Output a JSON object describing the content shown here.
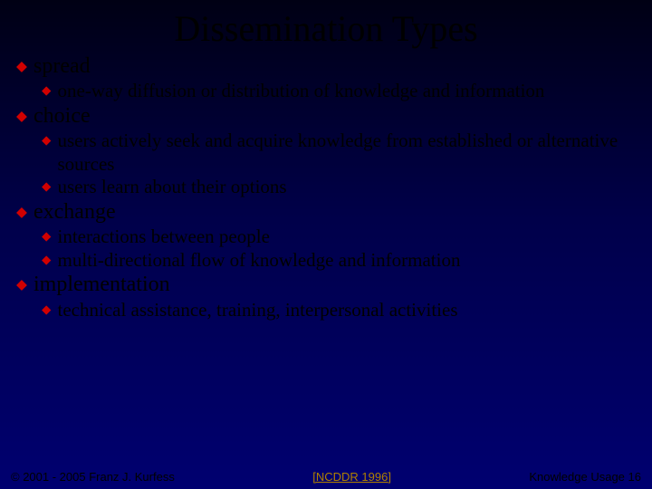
{
  "colors": {
    "background_top": "#000014",
    "background_mid": "#00004a",
    "background_bottom": "#000070",
    "bullet": "#d00000",
    "text": "#000000",
    "ref": "#b08000"
  },
  "typography": {
    "title_family": "Times New Roman",
    "title_size_pt": 40,
    "lvl1_size_pt": 24,
    "lvl2_size_pt": 21,
    "footer_family": "Arial",
    "footer_size_pt": 13
  },
  "title": "Dissemination Types",
  "items": {
    "i0": {
      "text": "spread"
    },
    "i0_0": {
      "text": "one-way diffusion or distribution of knowledge and information"
    },
    "i1": {
      "text": "choice"
    },
    "i1_0": {
      "text": "users actively seek and acquire knowledge from established or alternative sources"
    },
    "i1_1": {
      "text": "users learn about their options"
    },
    "i2": {
      "text": "exchange"
    },
    "i2_0": {
      "text": "interactions between people"
    },
    "i2_1": {
      "text": "multi-directional flow of knowledge and information"
    },
    "i3": {
      "text": "implementation"
    },
    "i3_0": {
      "text": "technical assistance, training, interpersonal activities"
    }
  },
  "footer": {
    "left": "© 2001 - 2005 Franz J. Kurfess",
    "center": "[NCDDR 1996]",
    "right": "Knowledge Usage 16"
  }
}
